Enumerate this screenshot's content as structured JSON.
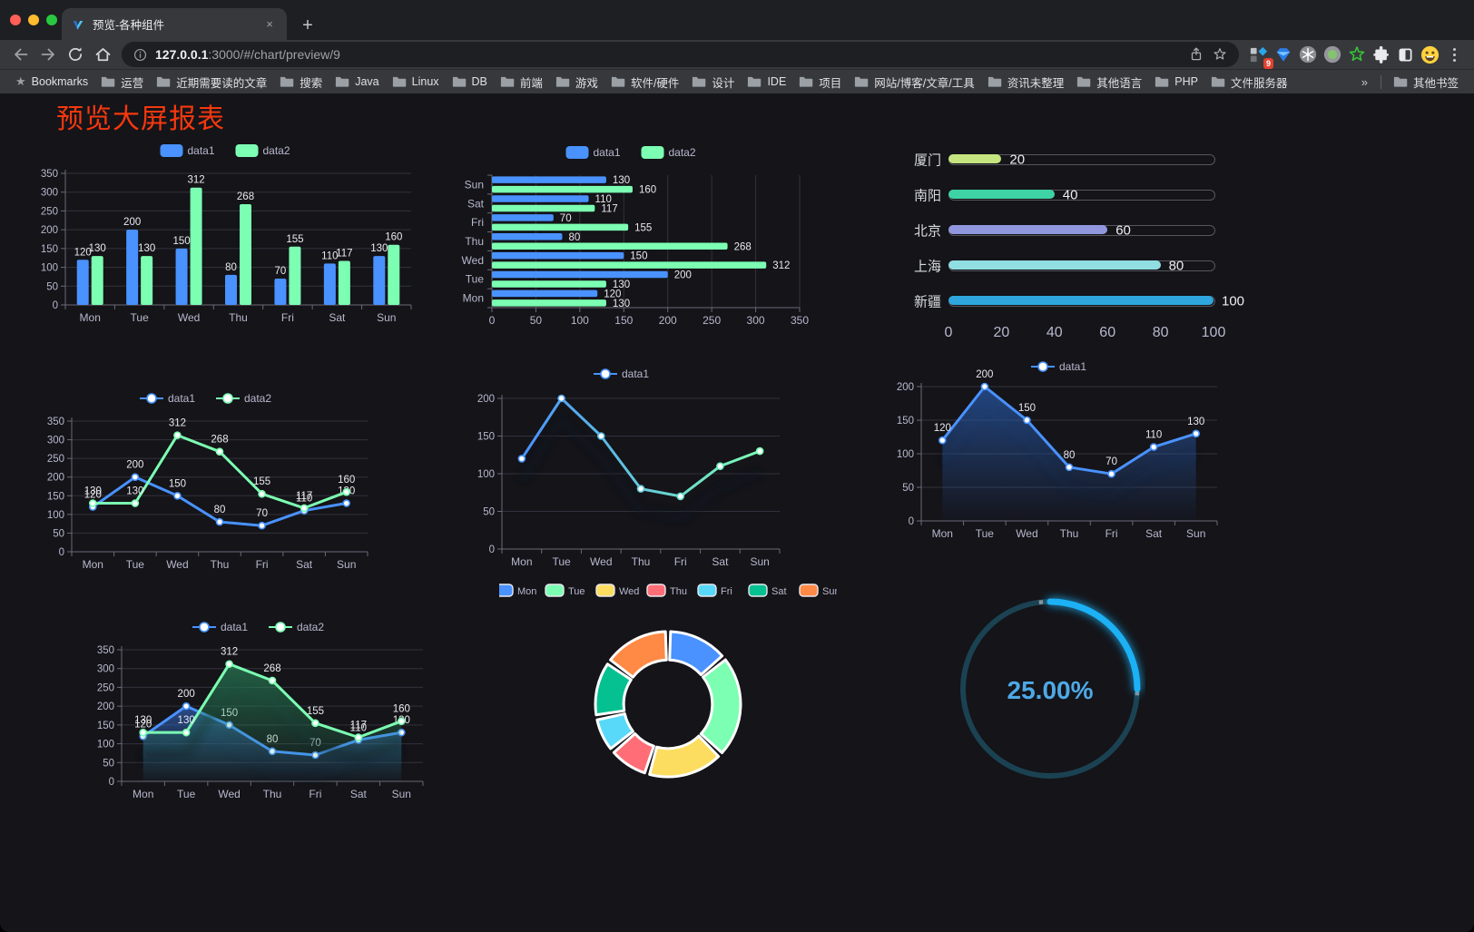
{
  "browser": {
    "tab": {
      "title": "预览-各种组件",
      "close_glyph": "×",
      "new_tab_glyph": "+"
    },
    "address": {
      "url_host": "127.0.0.1",
      "url_rest": ":3000/#/chart/preview/9"
    },
    "extensions": {
      "badge_count": "9"
    }
  },
  "bookmarks_bar": {
    "root_label": "Bookmarks",
    "root_star_glyph": "★",
    "folders": [
      "运营",
      "近期需要读的文章",
      "搜索",
      "Java",
      "Linux",
      "DB",
      "前端",
      "游戏",
      "软件/硬件",
      "设计",
      "IDE",
      "项目",
      "网站/博客/文章/工具",
      "资讯未整理",
      "其他语言",
      "PHP",
      "文件服务器"
    ],
    "overflow_chevron": "»",
    "other_bookmarks": "其他书签"
  },
  "page": {
    "title": "预览大屏报表",
    "title_color": "#f5380e",
    "background": "#141419"
  },
  "chart_data": [
    {
      "id": "bar-vertical",
      "type": "bar",
      "orientation": "vertical",
      "categories": [
        "Mon",
        "Tue",
        "Wed",
        "Thu",
        "Fri",
        "Sat",
        "Sun"
      ],
      "series": [
        {
          "name": "data1",
          "color": "#4992ff",
          "values": [
            120,
            200,
            150,
            80,
            70,
            110,
            130
          ]
        },
        {
          "name": "data2",
          "color": "#7cffb2",
          "values": [
            130,
            130,
            312,
            268,
            155,
            117,
            160
          ]
        }
      ],
      "ylim": [
        0,
        350
      ],
      "ystep": 50,
      "value_labels": true,
      "grid": true,
      "legend_position": "top"
    },
    {
      "id": "bar-horizontal",
      "type": "bar",
      "orientation": "horizontal",
      "categories": [
        "Mon",
        "Tue",
        "Wed",
        "Thu",
        "Fri",
        "Sat",
        "Sun"
      ],
      "series": [
        {
          "name": "data1",
          "color": "#4992ff",
          "values": [
            120,
            200,
            150,
            80,
            70,
            110,
            130
          ]
        },
        {
          "name": "data2",
          "color": "#7cffb2",
          "values": [
            130,
            130,
            312,
            268,
            155,
            117,
            160
          ]
        }
      ],
      "xlim": [
        0,
        350
      ],
      "xstep": 50,
      "value_labels": true,
      "grid": true,
      "legend_position": "top"
    },
    {
      "id": "progress-bars",
      "type": "bar",
      "subtype": "progress-list",
      "items": [
        {
          "label": "厦门",
          "value": 20,
          "color": "#c5e47f"
        },
        {
          "label": "南阳",
          "value": 40,
          "color": "#3ed3a3"
        },
        {
          "label": "北京",
          "value": 60,
          "color": "#9097de"
        },
        {
          "label": "上海",
          "value": 80,
          "color": "#90dee2"
        },
        {
          "label": "新疆",
          "value": 100,
          "color": "#2ea6dd"
        }
      ],
      "xlim": [
        0,
        100
      ],
      "xticks": [
        0,
        20,
        40,
        60,
        80,
        100
      ]
    },
    {
      "id": "line-two-series",
      "type": "line",
      "categories": [
        "Mon",
        "Tue",
        "Wed",
        "Thu",
        "Fri",
        "Sat",
        "Sun"
      ],
      "series": [
        {
          "name": "data1",
          "color": "#4992ff",
          "values": [
            120,
            200,
            150,
            80,
            70,
            110,
            130
          ]
        },
        {
          "name": "data2",
          "color": "#7cffb2",
          "values": [
            130,
            130,
            312,
            268,
            155,
            117,
            160
          ]
        }
      ],
      "ylim": [
        0,
        350
      ],
      "ystep": 50,
      "value_labels": true,
      "shadow": false,
      "legend_position": "top"
    },
    {
      "id": "line-gradient",
      "type": "line",
      "categories": [
        "Mon",
        "Tue",
        "Wed",
        "Thu",
        "Fri",
        "Sat",
        "Sun"
      ],
      "series": [
        {
          "name": "data1",
          "gradient": [
            "#4992ff",
            "#7cffb2"
          ],
          "values": [
            120,
            200,
            150,
            80,
            70,
            110,
            130
          ]
        }
      ],
      "ylim": [
        0,
        200
      ],
      "ystep": 50,
      "value_labels": false,
      "shadow": true,
      "legend_position": "top"
    },
    {
      "id": "line-area",
      "type": "area",
      "categories": [
        "Mon",
        "Tue",
        "Wed",
        "Thu",
        "Fri",
        "Sat",
        "Sun"
      ],
      "series": [
        {
          "name": "data1",
          "color": "#4992ff",
          "area_color": "#2f6fd6",
          "values": [
            120,
            200,
            150,
            80,
            70,
            110,
            130
          ]
        }
      ],
      "ylim": [
        0,
        200
      ],
      "ystep": 50,
      "value_labels": true,
      "shadow": true,
      "legend_position": "top"
    },
    {
      "id": "area-two-series",
      "type": "area",
      "categories": [
        "Mon",
        "Tue",
        "Wed",
        "Thu",
        "Fri",
        "Sat",
        "Sun"
      ],
      "series": [
        {
          "name": "data1",
          "color": "#4992ff",
          "area_color": "#3a77e0",
          "values": [
            120,
            200,
            150,
            80,
            70,
            110,
            130
          ]
        },
        {
          "name": "data2",
          "color": "#7cffb2",
          "area_color": "#2e9e68",
          "values": [
            130,
            130,
            312,
            268,
            155,
            117,
            160
          ]
        }
      ],
      "ylim": [
        0,
        350
      ],
      "ystep": 50,
      "value_labels": true,
      "shadow": true,
      "legend_position": "top"
    },
    {
      "id": "donut",
      "type": "pie",
      "categories": [
        "Mon",
        "Tue",
        "Wed",
        "Thu",
        "Fri",
        "Sat",
        "Sun"
      ],
      "values": [
        120,
        200,
        150,
        80,
        70,
        110,
        130
      ],
      "colors": [
        "#4992ff",
        "#7cffb2",
        "#fddd60",
        "#ff6e76",
        "#58d9f9",
        "#05c091",
        "#ff8a45"
      ],
      "inner_radius_ratio": 0.61,
      "border_color": "#ffffff",
      "legend_position": "top"
    },
    {
      "id": "gauge",
      "type": "gauge",
      "value": 25,
      "min": 0,
      "max": 100,
      "display": "25.00%",
      "progress_color": "#1db1f5",
      "track_color": "#1b4252",
      "text_color": "#4da9e6"
    }
  ]
}
